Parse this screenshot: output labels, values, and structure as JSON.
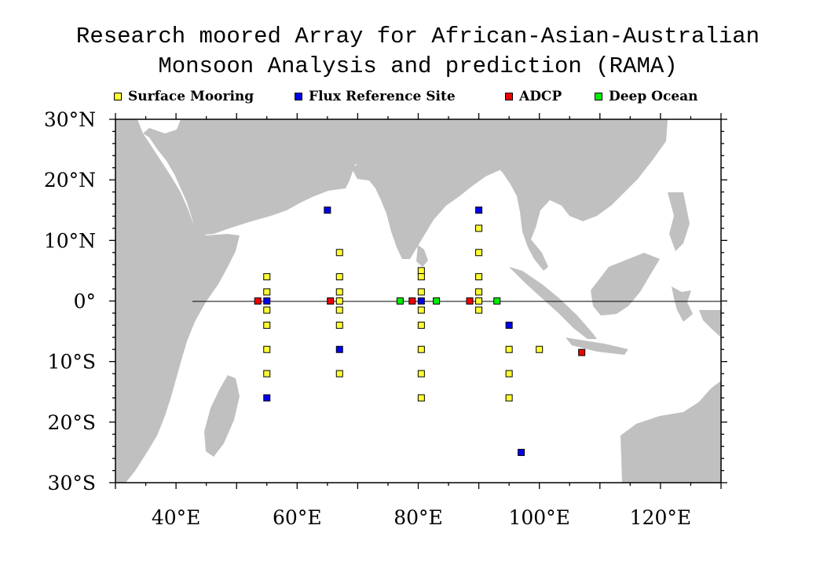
{
  "title": {
    "line1": "Research moored Array for African-Asian-Australian",
    "line2": "Monsoon Analysis and prediction (RAMA)"
  },
  "legend": [
    {
      "label": "Surface Mooring",
      "color": "#ffff33",
      "key": "surface"
    },
    {
      "label": "Flux Reference Site",
      "color": "#0000ee",
      "key": "flux"
    },
    {
      "label": "ADCP",
      "color": "#ee0000",
      "key": "adcp"
    },
    {
      "label": "Deep Ocean",
      "color": "#00ee00",
      "key": "deep"
    }
  ],
  "map": {
    "lon_range": [
      30,
      130
    ],
    "lat_range": [
      -30,
      30
    ],
    "land_color": "#c0c0c0",
    "equator_line": true,
    "lon_ticks": [
      {
        "value": 40,
        "label": "40°E"
      },
      {
        "value": 60,
        "label": "60°E"
      },
      {
        "value": 80,
        "label": "80°E"
      },
      {
        "value": 100,
        "label": "100°E"
      },
      {
        "value": 120,
        "label": "120°E"
      }
    ],
    "lat_ticks": [
      {
        "value": 30,
        "label": "30°N"
      },
      {
        "value": 20,
        "label": "20°N"
      },
      {
        "value": 10,
        "label": "10°N"
      },
      {
        "value": 0,
        "label": "0°"
      },
      {
        "value": -10,
        "label": "10°S"
      },
      {
        "value": -20,
        "label": "20°S"
      },
      {
        "value": -30,
        "label": "30°S"
      }
    ]
  },
  "moorings": [
    {
      "type": "surface",
      "lon": 55,
      "lat": 4
    },
    {
      "type": "surface",
      "lon": 55,
      "lat": 1.5
    },
    {
      "type": "surface",
      "lon": 55,
      "lat": -1.5
    },
    {
      "type": "surface",
      "lon": 55,
      "lat": -4
    },
    {
      "type": "surface",
      "lon": 55,
      "lat": -8
    },
    {
      "type": "surface",
      "lon": 55,
      "lat": -12
    },
    {
      "type": "surface",
      "lon": 67,
      "lat": 8
    },
    {
      "type": "surface",
      "lon": 67,
      "lat": 4
    },
    {
      "type": "surface",
      "lon": 67,
      "lat": 1.5
    },
    {
      "type": "surface",
      "lon": 67,
      "lat": 0
    },
    {
      "type": "surface",
      "lon": 67,
      "lat": -1.5
    },
    {
      "type": "surface",
      "lon": 67,
      "lat": -4
    },
    {
      "type": "surface",
      "lon": 67,
      "lat": -12
    },
    {
      "type": "surface",
      "lon": 80.5,
      "lat": 5
    },
    {
      "type": "surface",
      "lon": 80.5,
      "lat": 4
    },
    {
      "type": "surface",
      "lon": 80.5,
      "lat": 1.5
    },
    {
      "type": "surface",
      "lon": 80.5,
      "lat": -1.5
    },
    {
      "type": "surface",
      "lon": 80.5,
      "lat": -4
    },
    {
      "type": "surface",
      "lon": 80.5,
      "lat": -8
    },
    {
      "type": "surface",
      "lon": 80.5,
      "lat": -12
    },
    {
      "type": "surface",
      "lon": 80.5,
      "lat": -16
    },
    {
      "type": "surface",
      "lon": 90,
      "lat": 12
    },
    {
      "type": "surface",
      "lon": 90,
      "lat": 8
    },
    {
      "type": "surface",
      "lon": 90,
      "lat": 4
    },
    {
      "type": "surface",
      "lon": 90,
      "lat": 1.5
    },
    {
      "type": "surface",
      "lon": 90,
      "lat": 0
    },
    {
      "type": "surface",
      "lon": 90,
      "lat": -1.5
    },
    {
      "type": "surface",
      "lon": 95,
      "lat": -8
    },
    {
      "type": "surface",
      "lon": 95,
      "lat": -12
    },
    {
      "type": "surface",
      "lon": 95,
      "lat": -16
    },
    {
      "type": "surface",
      "lon": 100,
      "lat": -8
    },
    {
      "type": "flux",
      "lon": 65,
      "lat": 15
    },
    {
      "type": "flux",
      "lon": 55,
      "lat": 0
    },
    {
      "type": "flux",
      "lon": 55,
      "lat": -16
    },
    {
      "type": "flux",
      "lon": 67,
      "lat": -8
    },
    {
      "type": "flux",
      "lon": 80.5,
      "lat": 0
    },
    {
      "type": "flux",
      "lon": 90,
      "lat": 15
    },
    {
      "type": "flux",
      "lon": 95,
      "lat": -4
    },
    {
      "type": "flux",
      "lon": 97,
      "lat": -25
    },
    {
      "type": "adcp",
      "lon": 53.5,
      "lat": 0
    },
    {
      "type": "adcp",
      "lon": 65.5,
      "lat": 0
    },
    {
      "type": "adcp",
      "lon": 79,
      "lat": 0
    },
    {
      "type": "adcp",
      "lon": 88.5,
      "lat": 0
    },
    {
      "type": "adcp",
      "lon": 107,
      "lat": -8.5
    },
    {
      "type": "deep",
      "lon": 77,
      "lat": 0
    },
    {
      "type": "deep",
      "lon": 83,
      "lat": 0
    },
    {
      "type": "deep",
      "lon": 93,
      "lat": 0
    }
  ]
}
